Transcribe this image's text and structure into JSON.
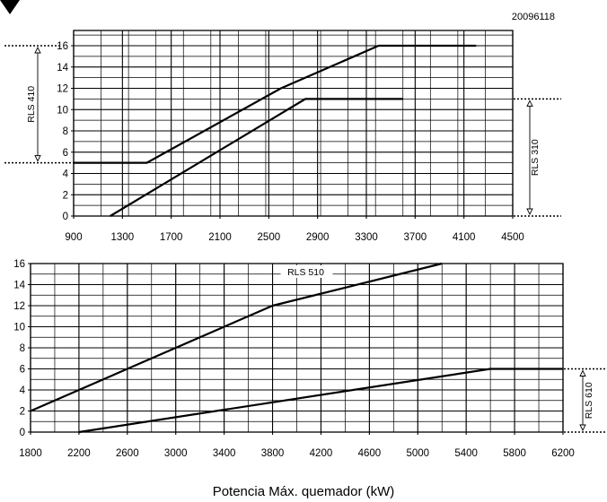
{
  "figure_code": "20096118",
  "xlabel": "Potencia Máx. quemador (kW)",
  "chart_data": [
    {
      "type": "line",
      "xticks": [
        900,
        1300,
        1700,
        2100,
        2500,
        2900,
        3300,
        3700,
        4100,
        4500
      ],
      "yticks": [
        0,
        2,
        4,
        6,
        8,
        10,
        12,
        14,
        16
      ],
      "xlim": [
        900,
        4500
      ],
      "ylim": [
        0,
        16
      ],
      "grid": true,
      "series": [
        {
          "name": "RLS 410",
          "x": [
            900,
            1500,
            2600,
            3400,
            4200
          ],
          "y": [
            5,
            5,
            12,
            16,
            16
          ]
        },
        {
          "name": "RLS 310",
          "x": [
            1200,
            2800,
            3600
          ],
          "y": [
            0,
            11,
            11
          ]
        }
      ],
      "range_labels": [
        {
          "text": "RLS 410",
          "from": 5,
          "to": 16,
          "side": "left"
        },
        {
          "text": "RLS 310",
          "from": 0,
          "to": 11,
          "side": "right"
        }
      ]
    },
    {
      "type": "line",
      "xticks": [
        1800,
        2200,
        2600,
        3000,
        3400,
        3800,
        4200,
        4600,
        5000,
        5400,
        5800,
        6200
      ],
      "yticks": [
        0,
        2,
        4,
        6,
        8,
        10,
        12,
        14,
        16
      ],
      "xlim": [
        1800,
        6200
      ],
      "ylim": [
        0,
        16
      ],
      "grid": true,
      "series": [
        {
          "name": "RLS 510",
          "x": [
            1800,
            3800,
            5200
          ],
          "y": [
            2,
            12,
            16
          ]
        },
        {
          "name": "RLS 610",
          "x": [
            2200,
            5600,
            6200
          ],
          "y": [
            0,
            6,
            6
          ]
        }
      ],
      "annotation": "RLS 510",
      "range_labels": [
        {
          "text": "RLS 610",
          "from": 0,
          "to": 6,
          "side": "right"
        }
      ]
    }
  ]
}
